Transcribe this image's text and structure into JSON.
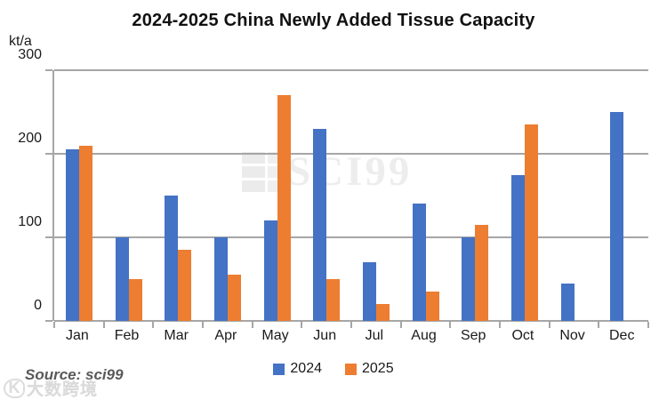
{
  "title": "2024-2025 China Newly Added Tissue Capacity",
  "y_axis_unit": "kt/a",
  "source": "Source: sci99",
  "watermark_center_text": "SCI99",
  "watermark_corner_text": "大数跨境",
  "colors": {
    "series_2024": "#4472C4",
    "series_2025": "#ED7D31",
    "gridline": "#A6A6A6",
    "title_text": "#111111",
    "source_text": "#595959",
    "watermark": "#E0E0E0"
  },
  "chart_data": {
    "type": "bar",
    "title": "2024-2025 China Newly Added Tissue Capacity",
    "ylabel": "kt/a",
    "xlabel": "",
    "ylim": [
      0,
      300
    ],
    "yticks": [
      0,
      100,
      200,
      300
    ],
    "grid": true,
    "legend_position": "bottom",
    "categories": [
      "Jan",
      "Feb",
      "Mar",
      "Apr",
      "May",
      "Jun",
      "Jul",
      "Aug",
      "Sep",
      "Oct",
      "Nov",
      "Dec"
    ],
    "series": [
      {
        "name": "2024",
        "color": "#4472C4",
        "values": [
          205,
          100,
          150,
          100,
          120,
          230,
          70,
          140,
          100,
          175,
          45,
          250
        ]
      },
      {
        "name": "2025",
        "color": "#ED7D31",
        "values": [
          210,
          50,
          85,
          55,
          270,
          50,
          20,
          35,
          115,
          235,
          null,
          null
        ]
      }
    ]
  }
}
